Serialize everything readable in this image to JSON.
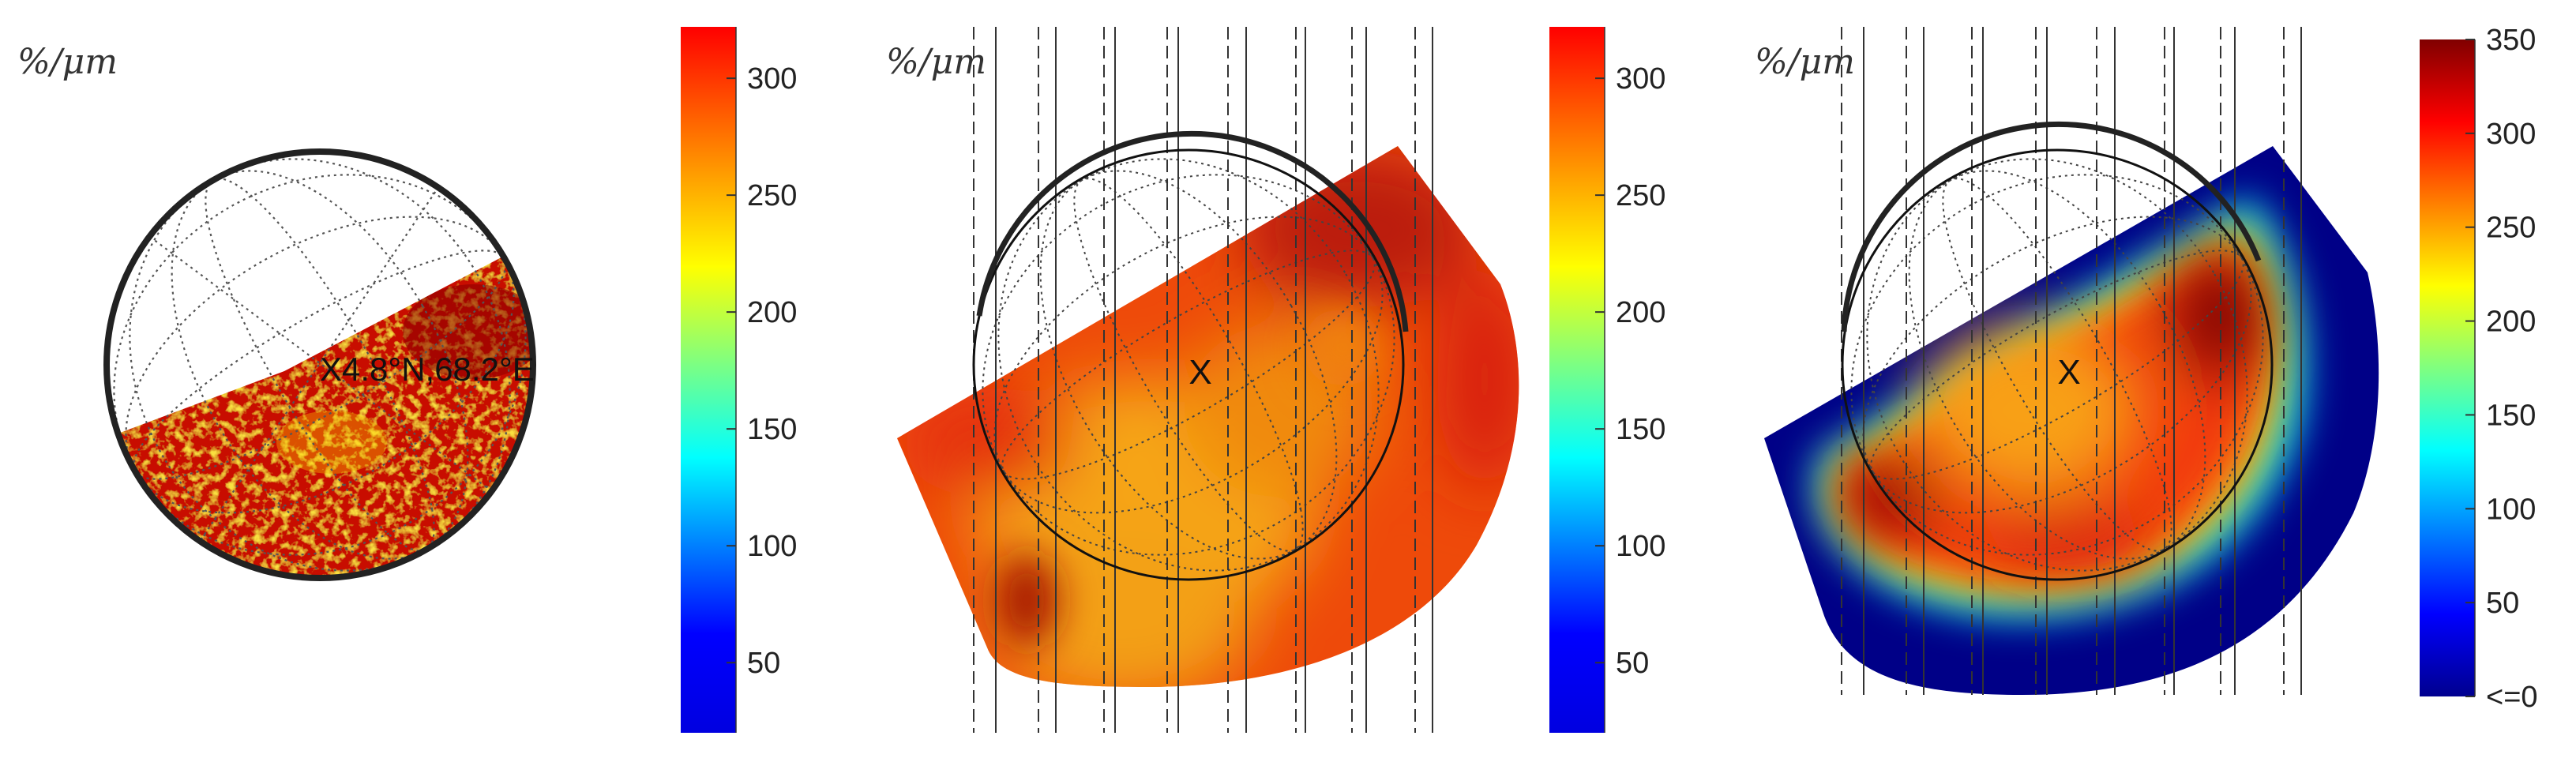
{
  "chart_data": [
    {
      "type": "heatmap",
      "title": "",
      "unit_label": "%/μm",
      "location_label": "X4.8°N,68.2°E",
      "colormap": "jet",
      "colorbar": {
        "range": [
          20,
          322
        ],
        "ticks": [
          "50",
          "100",
          "150",
          "200",
          "250",
          "300"
        ],
        "tick_values": [
          50,
          100,
          150,
          200,
          250,
          300
        ]
      },
      "map_value_range": [
        200,
        322
      ]
    },
    {
      "type": "heatmap",
      "title": "",
      "unit_label": "%/μm",
      "center_marker": "X",
      "colormap": "jet",
      "colorbar": {
        "range": [
          20,
          322
        ],
        "ticks": [
          "50",
          "100",
          "150",
          "200",
          "250",
          "300"
        ],
        "tick_values": [
          50,
          100,
          150,
          200,
          250,
          300
        ]
      },
      "map_value_range": [
        240,
        322
      ]
    },
    {
      "type": "heatmap",
      "title": "",
      "unit_label": "%/μm",
      "center_marker": "X",
      "colormap": "jet",
      "colorbar": {
        "range": [
          0,
          350
        ],
        "ticks": [
          "<=0",
          "50",
          "100",
          "150",
          "200",
          "250",
          "300",
          "350"
        ],
        "tick_values": [
          0,
          50,
          100,
          150,
          200,
          250,
          300,
          350
        ]
      },
      "map_value_range": [
        0,
        350
      ]
    }
  ]
}
